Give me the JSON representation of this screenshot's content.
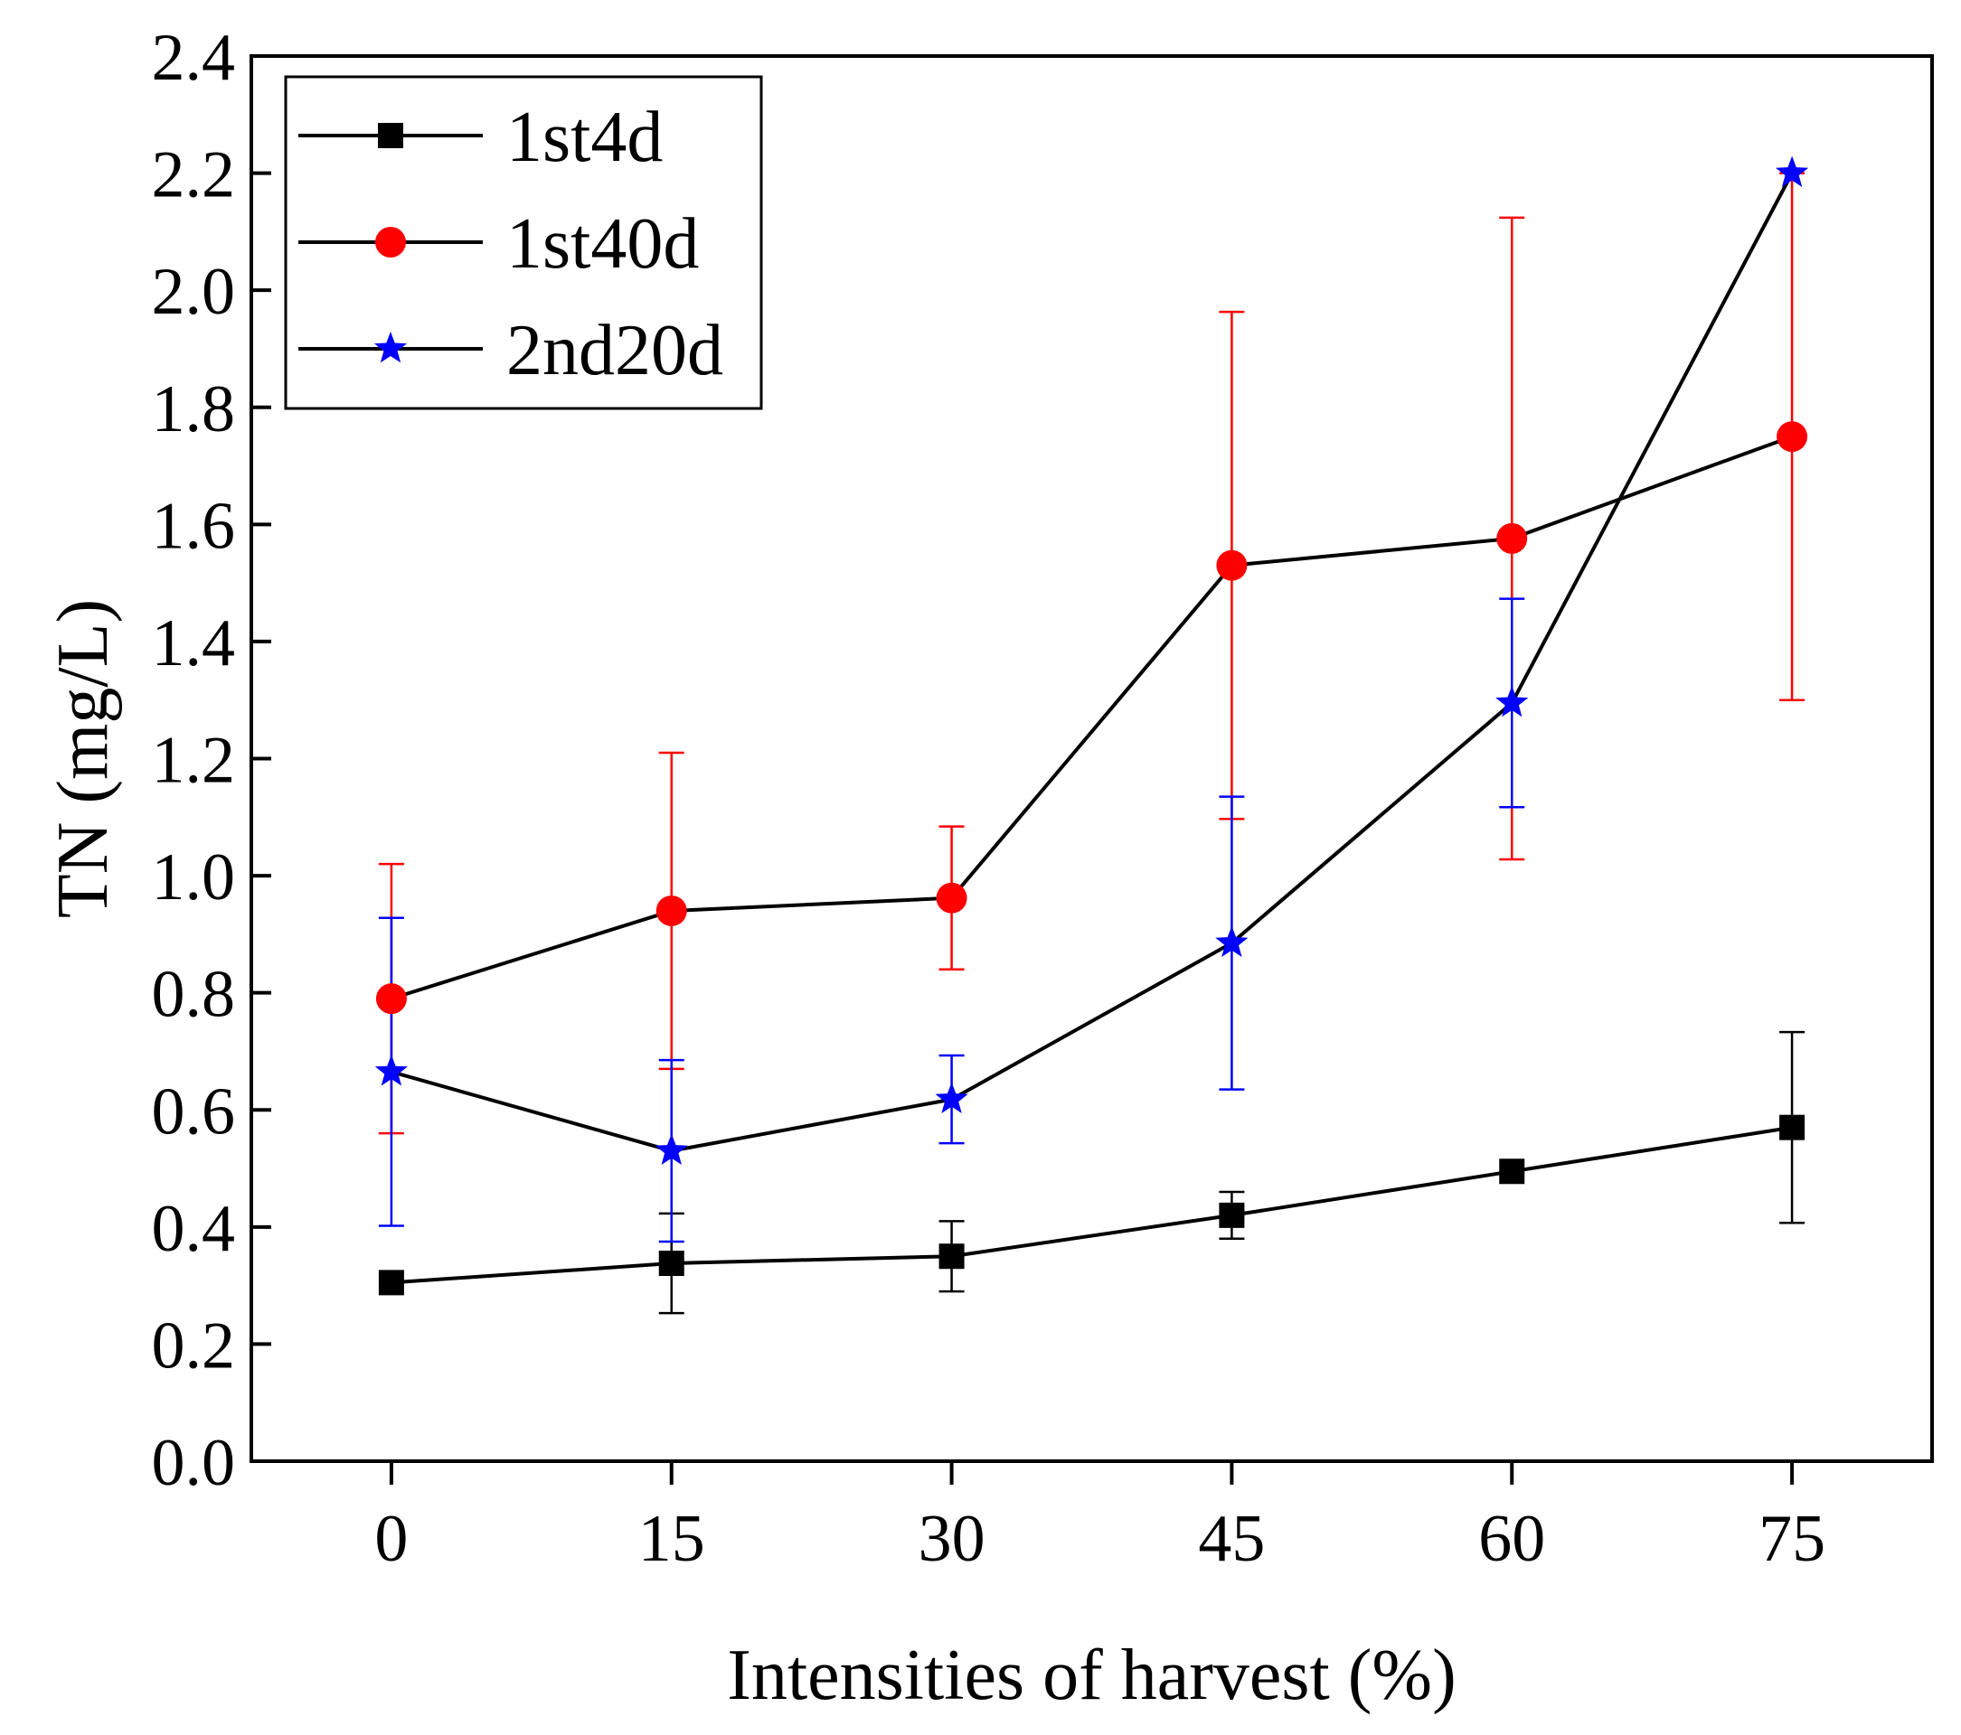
{
  "chart_data": {
    "type": "line",
    "title": "",
    "xlabel": "Intensities of harvest (%)",
    "ylabel": "TN (mg/L)",
    "x": [
      0,
      15,
      30,
      45,
      60,
      75
    ],
    "x_ticks": [
      "0",
      "15",
      "30",
      "45",
      "60",
      "75"
    ],
    "xlim": [
      -7.5,
      82.5
    ],
    "ylim": [
      0.0,
      2.4
    ],
    "y_ticks": [
      "0.0",
      "0.2",
      "0.4",
      "0.6",
      "0.8",
      "1.0",
      "1.2",
      "1.4",
      "1.6",
      "1.8",
      "2.0",
      "2.2",
      "2.4"
    ],
    "grid": false,
    "legend_position": "top-left",
    "series": [
      {
        "name": "1st4d",
        "marker": "square",
        "marker_color": "#000000",
        "line_color": "#000000",
        "error_color": "#000000",
        "values": [
          0.305,
          0.338,
          0.35,
          0.42,
          0.495,
          0.57
        ],
        "errors": [
          0.0,
          0.085,
          0.06,
          0.04,
          0.0,
          0.163
        ]
      },
      {
        "name": "1st40d",
        "marker": "circle",
        "marker_color": "#ff0000",
        "line_color": "#000000",
        "error_color": "#ff0000",
        "values": [
          0.79,
          0.94,
          0.962,
          1.53,
          1.576,
          1.75
        ],
        "errors": [
          0.23,
          0.27,
          0.122,
          0.433,
          0.548,
          0.45
        ]
      },
      {
        "name": "2nd20d",
        "marker": "star",
        "marker_color": "#0000ff",
        "line_color": "#000000",
        "error_color": "#0000ff",
        "values": [
          0.665,
          0.53,
          0.618,
          0.885,
          1.295,
          2.2
        ],
        "errors": [
          0.263,
          0.155,
          0.075,
          0.25,
          0.178,
          0.0
        ]
      }
    ]
  }
}
